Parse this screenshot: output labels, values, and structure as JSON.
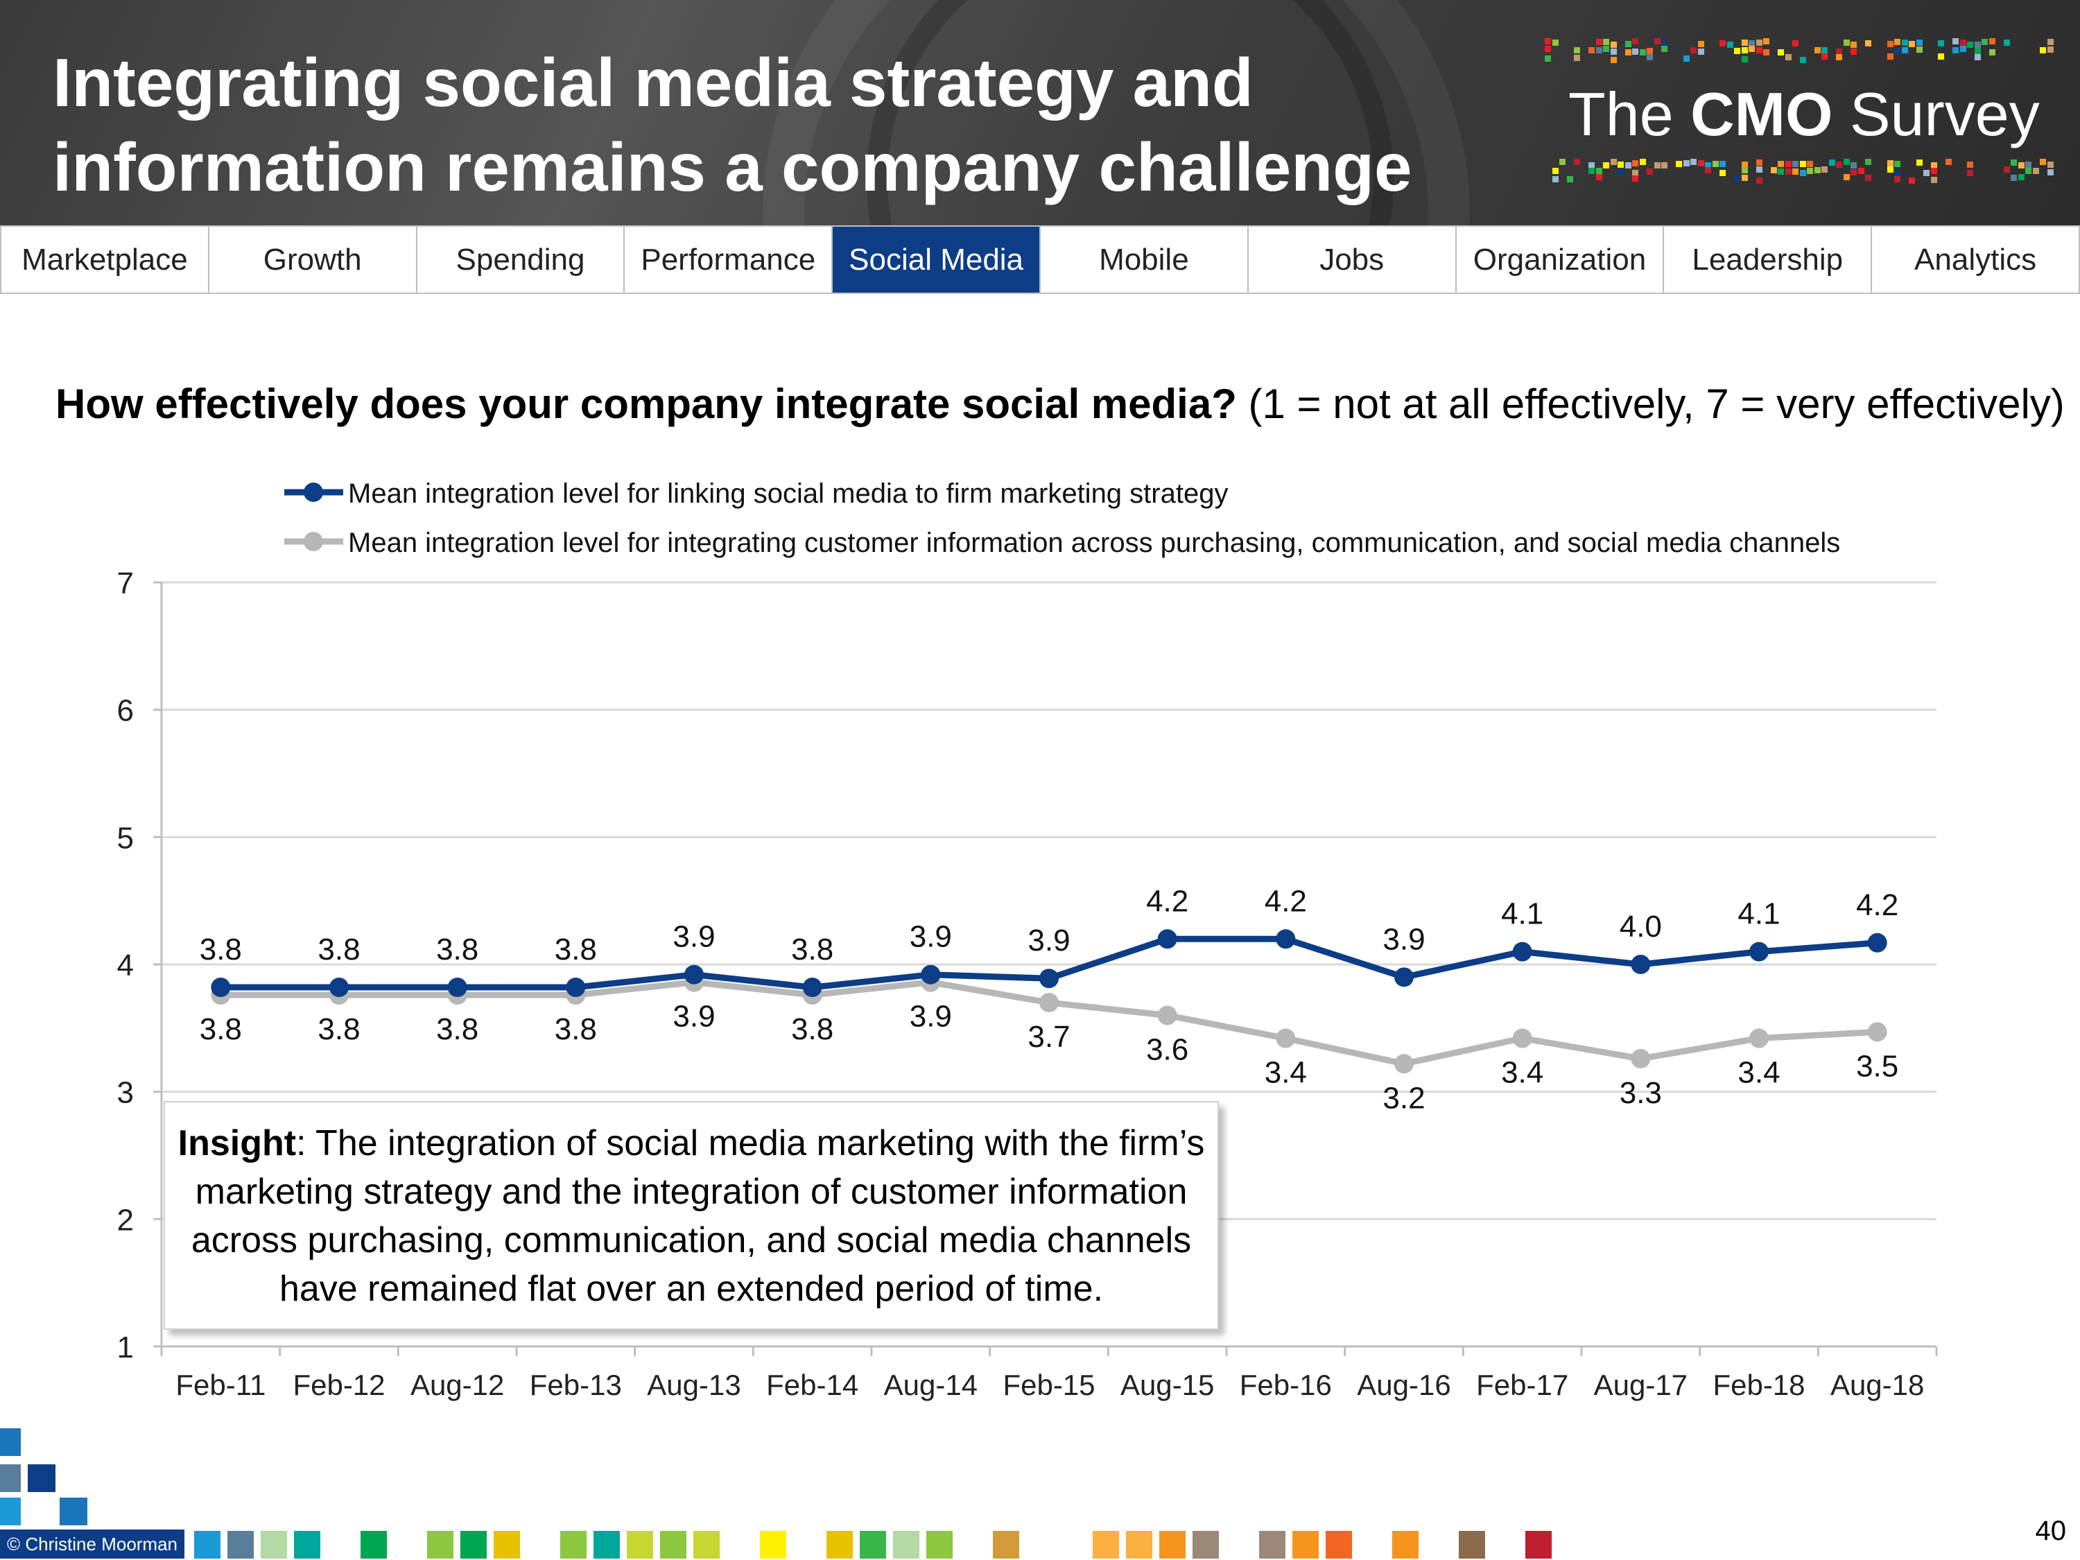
{
  "header": {
    "title_line1": "Integrating social media strategy and",
    "title_line2": "information remains a company challenge",
    "logo_the": "The ",
    "logo_cmo": "CMO",
    "logo_survey": " Survey"
  },
  "nav": {
    "tabs": [
      "Marketplace",
      "Growth",
      "Spending",
      "Performance",
      "Social Media",
      "Mobile",
      "Jobs",
      "Organization",
      "Leadership",
      "Analytics"
    ],
    "active": "Social Media"
  },
  "question": {
    "bold": "How effectively does your company integrate social media?",
    "rest": " (1 = not at all effectively, 7 = very effectively)"
  },
  "chart_data": {
    "type": "line",
    "categories": [
      "Feb-11",
      "Feb-12",
      "Aug-12",
      "Feb-13",
      "Aug-13",
      "Feb-14",
      "Aug-14",
      "Feb-15",
      "Aug-15",
      "Feb-16",
      "Aug-16",
      "Feb-17",
      "Aug-17",
      "Feb-18",
      "Aug-18"
    ],
    "ylim": [
      1,
      7
    ],
    "yticks": [
      1,
      2,
      3,
      4,
      5,
      6,
      7
    ],
    "grid": true,
    "legend_position": "top-left",
    "series": [
      {
        "name": "Mean integration level for linking social media to firm marketing strategy",
        "color": "#0d3d86",
        "values": [
          3.82,
          3.82,
          3.82,
          3.82,
          3.92,
          3.82,
          3.92,
          3.89,
          4.2,
          4.2,
          3.9,
          4.1,
          4.0,
          4.1,
          4.17
        ],
        "labels": [
          "3.8",
          "3.8",
          "3.8",
          "3.8",
          "3.9",
          "3.8",
          "3.9",
          "3.9",
          "4.2",
          "4.2",
          "3.9",
          "4.1",
          "4.0",
          "4.1",
          "4.2"
        ]
      },
      {
        "name": "Mean integration level for integrating customer information across purchasing, communication, and social media channels",
        "color": "#b7b7b7",
        "values": [
          3.76,
          3.76,
          3.76,
          3.76,
          3.86,
          3.76,
          3.86,
          3.7,
          3.6,
          3.42,
          3.22,
          3.42,
          3.26,
          3.42,
          3.47
        ],
        "labels": [
          "3.8",
          "3.8",
          "3.8",
          "3.8",
          "3.9",
          "3.8",
          "3.9",
          "3.7",
          "3.6",
          "3.4",
          "3.2",
          "3.4",
          "3.3",
          "3.4",
          "3.5"
        ]
      }
    ]
  },
  "insight": {
    "bold": "Insight",
    "text": ": The integration of social media marketing with the firm’s marketing strategy and the integration of customer information across purchasing, communication, and social media channels have remained flat over an extended period of time."
  },
  "footer": {
    "copyright": "© Christine Moorman",
    "page_number": "40"
  },
  "colors": {
    "nav_active": "#0d3d86",
    "series1": "#0d3d86",
    "series2": "#b7b7b7"
  }
}
